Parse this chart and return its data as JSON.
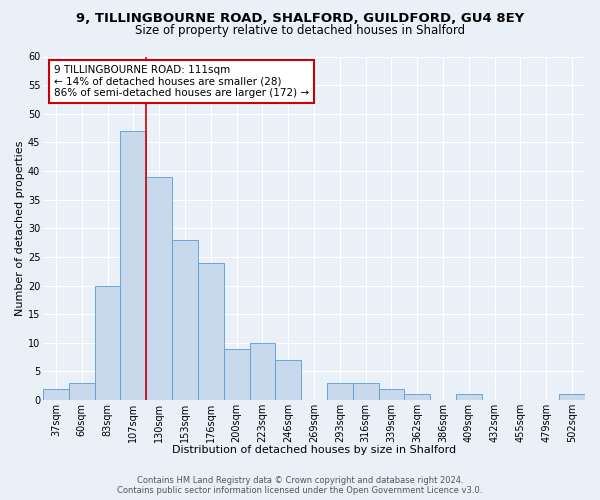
{
  "title1": "9, TILLINGBOURNE ROAD, SHALFORD, GUILDFORD, GU4 8EY",
  "title2": "Size of property relative to detached houses in Shalford",
  "xlabel": "Distribution of detached houses by size in Shalford",
  "ylabel": "Number of detached properties",
  "bin_labels": [
    "37sqm",
    "60sqm",
    "83sqm",
    "107sqm",
    "130sqm",
    "153sqm",
    "176sqm",
    "200sqm",
    "223sqm",
    "246sqm",
    "269sqm",
    "293sqm",
    "316sqm",
    "339sqm",
    "362sqm",
    "386sqm",
    "409sqm",
    "432sqm",
    "455sqm",
    "479sqm",
    "502sqm"
  ],
  "bar_values": [
    2,
    3,
    20,
    47,
    39,
    28,
    24,
    9,
    10,
    7,
    0,
    3,
    3,
    2,
    1,
    0,
    1,
    0,
    0,
    0,
    1
  ],
  "bar_color": "#c8d9ed",
  "bar_edge_color": "#5b9bd5",
  "ylim": [
    0,
    60
  ],
  "yticks": [
    0,
    5,
    10,
    15,
    20,
    25,
    30,
    35,
    40,
    45,
    50,
    55,
    60
  ],
  "vline_index": 3.5,
  "vline_color": "#cc0000",
  "annotation_title": "9 TILLINGBOURNE ROAD: 111sqm",
  "annotation_line1": "← 14% of detached houses are smaller (28)",
  "annotation_line2": "86% of semi-detached houses are larger (172) →",
  "annotation_box_color": "#cc0000",
  "footer1": "Contains HM Land Registry data © Crown copyright and database right 2024.",
  "footer2": "Contains public sector information licensed under the Open Government Licence v3.0.",
  "bg_color": "#eaf0f7",
  "plot_bg_color": "#eaf0f7",
  "grid_color": "#ffffff",
  "title_fontsize": 9.5,
  "subtitle_fontsize": 8.5,
  "axis_label_fontsize": 8,
  "tick_fontsize": 7,
  "annotation_fontsize": 7.5,
  "footer_fontsize": 6
}
